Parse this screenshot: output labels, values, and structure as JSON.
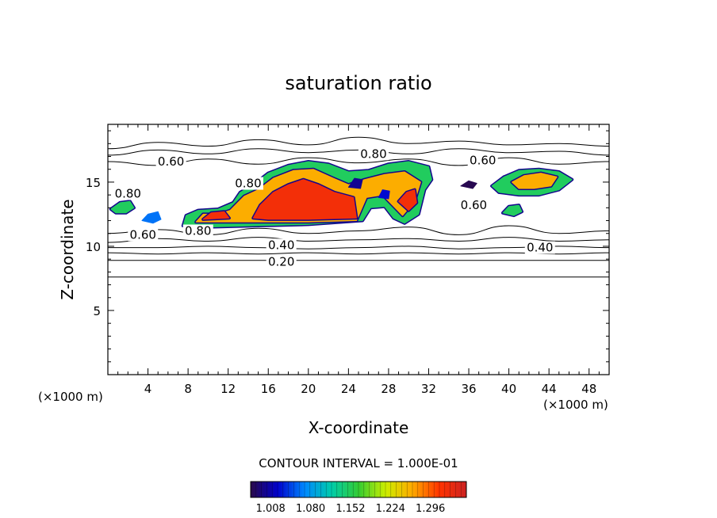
{
  "chart_data": {
    "type": "heatmap",
    "title": "saturation ratio",
    "xlabel": "X-coordinate",
    "ylabel": "Z-coordinate",
    "x_unit": "(×1000 m)",
    "z_unit": "(×1000 m)",
    "xlim": [
      0,
      50
    ],
    "ylim": [
      0,
      19.5
    ],
    "x_ticks": [
      4,
      8,
      12,
      16,
      20,
      24,
      28,
      32,
      36,
      40,
      44,
      48
    ],
    "y_ticks": [
      5,
      10,
      15
    ],
    "contour_interval_text": "CONTOUR INTERVAL = 1.000E-01",
    "colorbar": {
      "min": 1.008,
      "max": 1.32,
      "labels": [
        "1.008",
        "1.080",
        "1.152",
        "1.224",
        "1.296"
      ],
      "colors": [
        "#2a0a4a",
        "#0000cc",
        "#0088ff",
        "#00ccaa",
        "#33cc33",
        "#ccee00",
        "#ffaa00",
        "#ff3300",
        "#cc2222"
      ]
    },
    "contour_labels": [
      {
        "text": "0.60",
        "x": 6.3,
        "z": 16.6
      },
      {
        "text": "0.80",
        "x": 26.5,
        "z": 17.2
      },
      {
        "text": "0.60",
        "x": 37.4,
        "z": 16.7
      },
      {
        "text": "0.80",
        "x": 2.0,
        "z": 14.1
      },
      {
        "text": "0.80",
        "x": 14.0,
        "z": 14.9
      },
      {
        "text": "0.60",
        "x": 36.5,
        "z": 13.2
      },
      {
        "text": "0.60",
        "x": 3.5,
        "z": 10.9
      },
      {
        "text": "0.80",
        "x": 9.0,
        "z": 11.2
      },
      {
        "text": "0.40",
        "x": 17.3,
        "z": 10.1
      },
      {
        "text": "0.40",
        "x": 43.1,
        "z": 9.9
      },
      {
        "text": "0.20",
        "x": 17.3,
        "z": 8.8
      }
    ],
    "level_lines": [
      {
        "level": 0.1,
        "z": [
          7.6,
          7.6,
          7.6,
          7.6,
          7.6,
          7.6,
          7.6,
          7.6,
          7.6,
          7.6,
          7.6
        ]
      },
      {
        "level": 0.2,
        "z": [
          8.9,
          8.9,
          8.9,
          8.9,
          8.9,
          8.9,
          8.9,
          8.9,
          8.9,
          8.9,
          8.9
        ]
      },
      {
        "level": 0.3,
        "z": [
          9.5,
          9.4,
          9.5,
          9.4,
          9.5,
          9.4,
          9.5,
          9.4,
          9.5,
          9.4,
          9.5
        ]
      },
      {
        "level": 0.4,
        "z": [
          9.9,
          9.9,
          10.0,
          9.9,
          9.8,
          9.9,
          10.0,
          9.8,
          9.9,
          10.0,
          9.9
        ]
      },
      {
        "level": 0.5,
        "z": [
          10.3,
          10.6,
          10.4,
          10.7,
          10.4,
          10.5,
          10.6,
          10.4,
          10.7,
          10.4,
          10.5
        ]
      },
      {
        "level": 0.6,
        "z": [
          11.0,
          11.3,
          10.9,
          11.4,
          11.0,
          11.2,
          11.5,
          10.9,
          11.6,
          11.0,
          11.2
        ]
      }
    ],
    "upper_lines": [
      {
        "level": 0.6,
        "z": [
          16.6,
          16.3,
          16.8,
          16.4,
          16.9,
          16.5,
          16.8,
          16.3,
          16.9,
          16.4,
          16.6
        ]
      },
      {
        "level": 0.5,
        "z": [
          17.1,
          17.5,
          17.2,
          17.6,
          17.3,
          17.5,
          17.2,
          17.6,
          17.3,
          17.4,
          17.1
        ]
      },
      {
        "level": 0.4,
        "z": [
          17.6,
          18.1,
          17.8,
          18.3,
          17.9,
          18.5,
          18.0,
          18.2,
          17.9,
          18.0,
          17.8
        ]
      }
    ],
    "regions": [
      {
        "level": 1.15,
        "pts": [
          [
            7.5,
            11.6
          ],
          [
            7.8,
            12.4
          ],
          [
            9,
            12.8
          ],
          [
            11,
            12.9
          ],
          [
            12.5,
            13.4
          ],
          [
            13.2,
            14.2
          ],
          [
            14.5,
            14.8
          ],
          [
            16,
            15.7
          ],
          [
            18,
            16.3
          ],
          [
            20,
            16.6
          ],
          [
            22,
            16.4
          ],
          [
            24,
            15.8
          ],
          [
            26,
            15.9
          ],
          [
            28,
            16.4
          ],
          [
            30,
            16.6
          ],
          [
            32,
            16.2
          ],
          [
            32.3,
            15.2
          ],
          [
            31.6,
            14.4
          ],
          [
            31.0,
            12.5
          ],
          [
            29.6,
            11.8
          ],
          [
            28.5,
            12.2
          ],
          [
            27.6,
            13.1
          ],
          [
            26.2,
            13.0
          ],
          [
            25.4,
            12.0
          ],
          [
            20,
            11.7
          ],
          [
            15,
            11.6
          ],
          [
            10,
            11.5
          ]
        ]
      },
      {
        "level": 1.24,
        "pts": [
          [
            8.8,
            11.9
          ],
          [
            9.5,
            12.5
          ],
          [
            11,
            12.5
          ],
          [
            12.2,
            12.8
          ],
          [
            13.6,
            13.9
          ],
          [
            15,
            14.4
          ],
          [
            16.5,
            15.3
          ],
          [
            18.5,
            15.9
          ],
          [
            20.5,
            16.0
          ],
          [
            22.5,
            15.3
          ],
          [
            24,
            14.8
          ],
          [
            25.6,
            15.2
          ],
          [
            27.6,
            15.6
          ],
          [
            29.6,
            15.8
          ],
          [
            31.2,
            15.0
          ],
          [
            30.6,
            13.5
          ],
          [
            29.4,
            12.4
          ],
          [
            28.4,
            13.2
          ],
          [
            27.4,
            14.0
          ],
          [
            25.8,
            13.8
          ],
          [
            24.8,
            12.0
          ],
          [
            20,
            11.9
          ],
          [
            15,
            11.9
          ],
          [
            11,
            11.9
          ]
        ]
      },
      {
        "level": 1.29,
        "pts": [
          [
            14.5,
            12.2
          ],
          [
            15.2,
            13.2
          ],
          [
            16.5,
            14.2
          ],
          [
            18,
            14.8
          ],
          [
            19.5,
            15.2
          ],
          [
            21,
            14.8
          ],
          [
            22.6,
            14.2
          ],
          [
            24.5,
            13.8
          ],
          [
            24.8,
            12.2
          ],
          [
            20,
            12.1
          ],
          [
            16,
            12.1
          ]
        ]
      },
      {
        "level": 1.29,
        "pts": [
          [
            9.5,
            12.1
          ],
          [
            10.3,
            12.6
          ],
          [
            11.6,
            12.7
          ],
          [
            12.1,
            12.2
          ]
        ]
      },
      {
        "level": 1.29,
        "pts": [
          [
            29.0,
            13.5
          ],
          [
            29.8,
            14.2
          ],
          [
            30.6,
            14.4
          ],
          [
            30.8,
            13.4
          ],
          [
            30.0,
            12.8
          ]
        ]
      },
      {
        "level": 1.15,
        "pts": [
          [
            38.3,
            14.7
          ],
          [
            39.5,
            15.4
          ],
          [
            41,
            15.9
          ],
          [
            43,
            16.0
          ],
          [
            45,
            15.8
          ],
          [
            46.3,
            15.2
          ],
          [
            45,
            14.4
          ],
          [
            43,
            14.0
          ],
          [
            41,
            14.0
          ],
          [
            39,
            14.2
          ]
        ]
      },
      {
        "level": 1.24,
        "pts": [
          [
            40.3,
            15.0
          ],
          [
            41.5,
            15.5
          ],
          [
            43.2,
            15.7
          ],
          [
            44.8,
            15.4
          ],
          [
            44.2,
            14.7
          ],
          [
            42.5,
            14.5
          ],
          [
            41,
            14.5
          ]
        ]
      },
      {
        "level": 1.15,
        "pts": [
          [
            0.3,
            12.9
          ],
          [
            1.2,
            13.4
          ],
          [
            2.2,
            13.5
          ],
          [
            2.6,
            13.0
          ],
          [
            1.8,
            12.6
          ],
          [
            0.8,
            12.6
          ]
        ]
      },
      {
        "level": 1.08,
        "pts": [
          [
            3.4,
            12.0
          ],
          [
            4.0,
            12.5
          ],
          [
            5.0,
            12.7
          ],
          [
            5.3,
            12.1
          ],
          [
            4.5,
            11.8
          ]
        ]
      },
      {
        "level": 1.15,
        "pts": [
          [
            39.4,
            12.6
          ],
          [
            40,
            13.1
          ],
          [
            41,
            13.2
          ],
          [
            41.3,
            12.7
          ],
          [
            40.5,
            12.4
          ]
        ]
      },
      {
        "level": 1.01,
        "pts": [
          [
            35.2,
            14.7
          ],
          [
            36,
            15.1
          ],
          [
            36.8,
            14.9
          ],
          [
            36.4,
            14.5
          ]
        ]
      },
      {
        "level": 1.03,
        "pts": [
          [
            24.0,
            14.6
          ],
          [
            24.6,
            15.3
          ],
          [
            25.4,
            15.2
          ],
          [
            25.2,
            14.5
          ]
        ]
      },
      {
        "level": 1.05,
        "pts": [
          [
            27.0,
            13.8
          ],
          [
            27.4,
            14.4
          ],
          [
            28.1,
            14.3
          ],
          [
            28.0,
            13.7
          ]
        ]
      }
    ]
  }
}
